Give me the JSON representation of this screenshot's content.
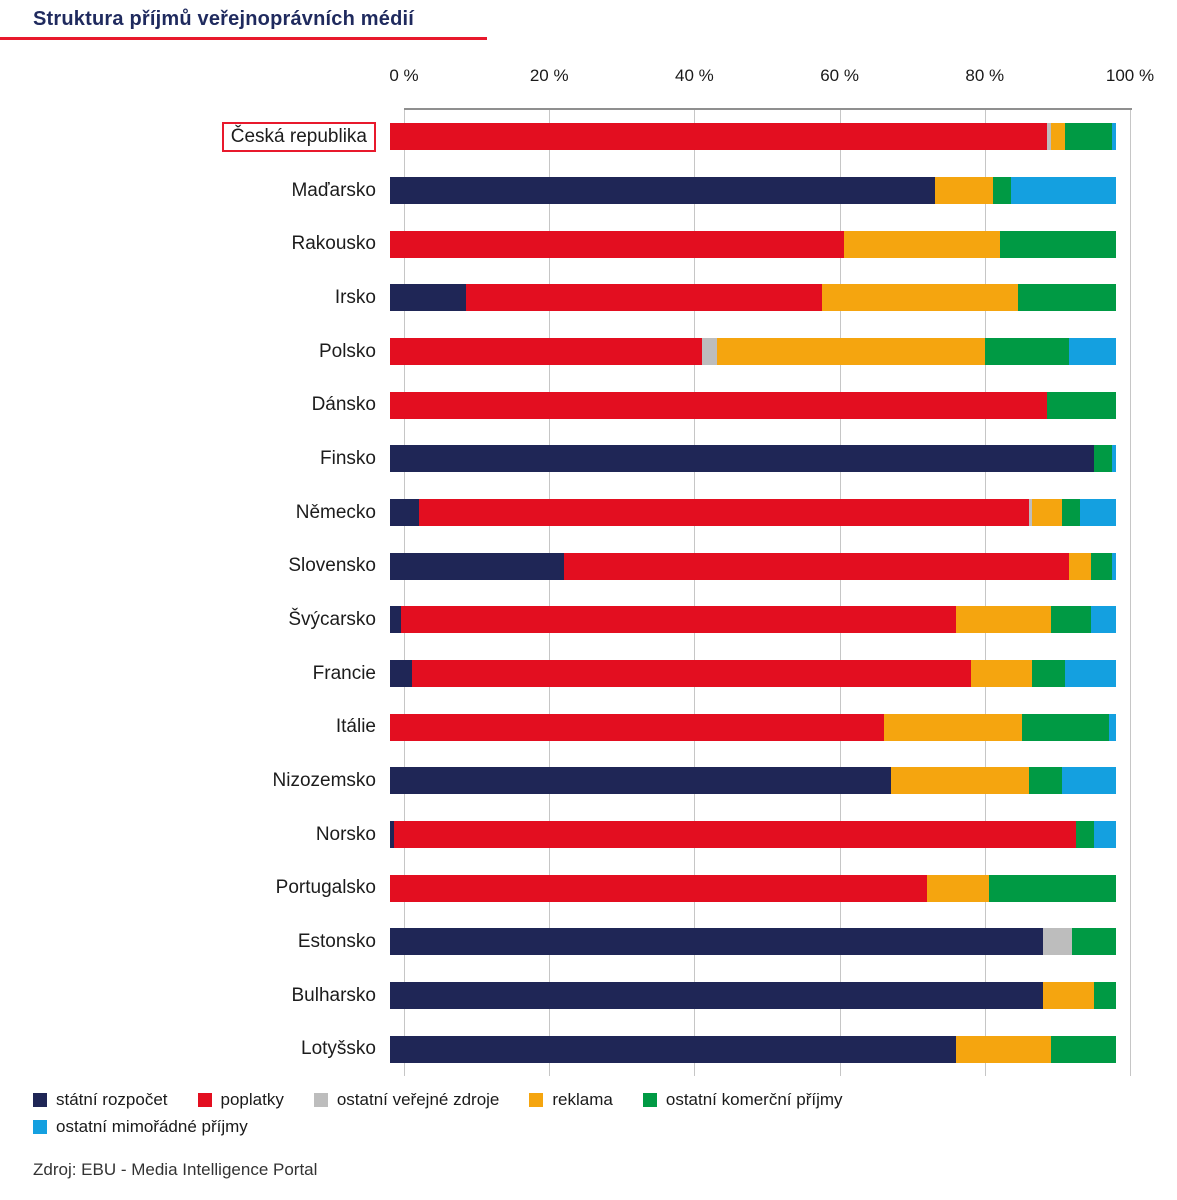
{
  "page": {
    "title": "Struktura příjmů veřejnoprávních médií",
    "source": "Zdroj: EBU - Media Intelligence Portal"
  },
  "accent": {
    "red": "#e8192c",
    "navy": "#1f2a5e"
  },
  "chart_data": {
    "type": "bar",
    "orientation": "horizontal",
    "stacked": true,
    "title": "Struktura příjmů veřejnoprávních médií",
    "xlabel": "",
    "ylabel": "",
    "xlim": [
      0,
      100
    ],
    "x_ticks": [
      "0 %",
      "20 %",
      "40 %",
      "60 %",
      "80 %",
      "100 %"
    ],
    "x_tick_values": [
      0,
      20,
      40,
      60,
      80,
      100
    ],
    "grid": "vertical gridlines every 20%",
    "legend_position": "bottom",
    "highlighted_category": "Česká republika",
    "categories": [
      "Česká republika",
      "Maďarsko",
      "Rakousko",
      "Irsko",
      "Polsko",
      "Dánsko",
      "Finsko",
      "Německo",
      "Slovensko",
      "Švýcarsko",
      "Francie",
      "Itálie",
      "Nizozemsko",
      "Norsko",
      "Portugalsko",
      "Estonsko",
      "Bulharsko",
      "Lotyšsko"
    ],
    "series": [
      {
        "name": "státní rozpočet",
        "color": "#1f2656",
        "values": [
          0,
          75,
          0,
          10.5,
          0,
          0,
          97,
          4,
          24,
          1.5,
          3,
          0,
          69,
          0.5,
          0,
          90,
          90,
          78
        ]
      },
      {
        "name": "poplatky",
        "color": "#e30e20",
        "values": [
          90.5,
          0,
          62.5,
          49,
          43,
          90.5,
          0,
          84,
          69.5,
          76.5,
          77,
          68,
          0,
          94,
          74,
          0,
          0,
          0
        ]
      },
      {
        "name": "ostatní veřejné zdroje",
        "color": "#bdbdbd",
        "values": [
          0.5,
          0,
          0,
          0,
          2,
          0,
          0,
          0.5,
          0,
          0,
          0,
          0,
          0,
          0,
          0,
          4,
          0,
          0
        ]
      },
      {
        "name": "reklama",
        "color": "#f5a50f",
        "values": [
          2,
          8,
          21.5,
          27,
          37,
          0,
          0,
          4,
          3,
          13,
          8.5,
          19,
          19,
          0,
          8.5,
          0,
          7,
          13
        ]
      },
      {
        "name": "ostatní komerční příjmy",
        "color": "#009a44",
        "values": [
          6.5,
          2.5,
          16,
          13.5,
          11.5,
          9.5,
          2.5,
          2.5,
          3,
          5.5,
          4.5,
          12,
          4.5,
          2.5,
          17.5,
          6,
          3,
          9
        ]
      },
      {
        "name": "ostatní mimořádné příjmy",
        "color": "#14a0e0",
        "values": [
          0.5,
          14.5,
          0,
          0,
          6.5,
          0,
          0.5,
          5,
          0.5,
          3.5,
          7,
          1,
          7.5,
          3,
          0,
          0,
          0,
          0
        ]
      }
    ]
  }
}
